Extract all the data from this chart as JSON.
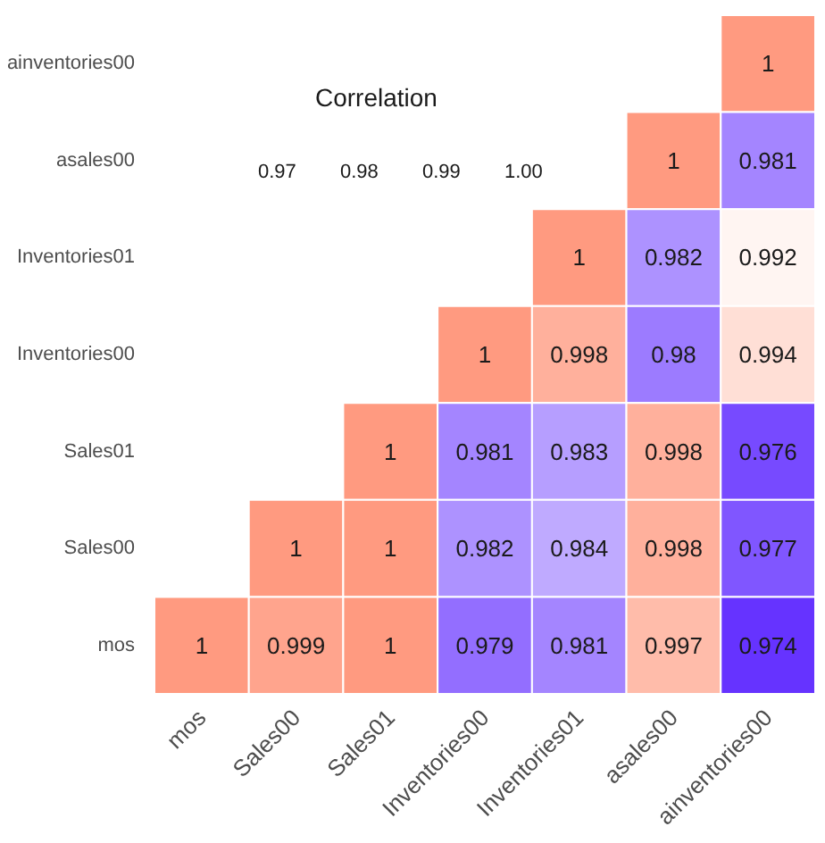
{
  "chart_data": {
    "type": "heatmap",
    "clabel": "Correlation",
    "annotations": [
      "0.97",
      "0.98",
      "0.99",
      "1.00"
    ],
    "categories": [
      "mos",
      "Sales00",
      "Sales01",
      "Inventories00",
      "Inventories01",
      "asales00",
      "ainventories00"
    ],
    "y_categories": [
      "ainventories00",
      "asales00",
      "Inventories01",
      "Inventories00",
      "Sales01",
      "Sales00",
      "mos"
    ],
    "cells": [
      [
        null,
        null,
        null,
        null,
        null,
        null,
        1
      ],
      [
        null,
        null,
        null,
        null,
        null,
        1,
        0.981
      ],
      [
        null,
        null,
        null,
        null,
        1,
        0.982,
        0.992
      ],
      [
        null,
        null,
        null,
        1,
        0.998,
        0.98,
        0.994
      ],
      [
        null,
        null,
        1,
        0.981,
        0.983,
        0.998,
        0.976
      ],
      [
        null,
        1,
        1,
        0.982,
        0.984,
        0.998,
        0.977
      ],
      [
        1,
        0.999,
        1,
        0.979,
        0.981,
        0.997,
        0.974
      ]
    ],
    "data_labels": true
  }
}
